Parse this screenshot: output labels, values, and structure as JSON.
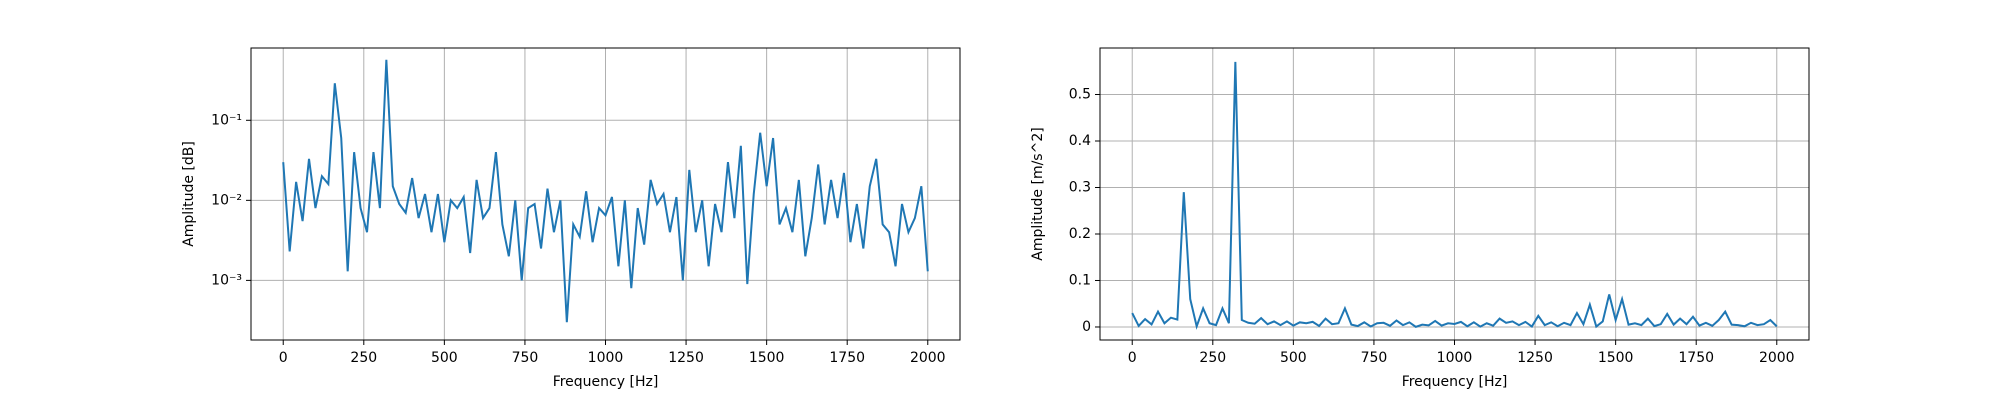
{
  "chart_data": [
    {
      "type": "line",
      "x_label": "Frequency [Hz]",
      "y_label": "Amplitude [dB]",
      "log_y": true,
      "grid": true,
      "color": "#1f77b4",
      "x": [
        0,
        20,
        40,
        60,
        80,
        100,
        120,
        140,
        160,
        180,
        200,
        220,
        240,
        260,
        280,
        300,
        320,
        340,
        360,
        380,
        400,
        420,
        440,
        460,
        480,
        500,
        520,
        540,
        560,
        580,
        600,
        620,
        640,
        660,
        680,
        700,
        720,
        740,
        760,
        780,
        800,
        820,
        840,
        860,
        880,
        900,
        920,
        940,
        960,
        980,
        1000,
        1020,
        1040,
        1060,
        1080,
        1100,
        1120,
        1140,
        1160,
        1180,
        1200,
        1220,
        1240,
        1260,
        1280,
        1300,
        1320,
        1340,
        1360,
        1380,
        1400,
        1420,
        1440,
        1460,
        1480,
        1500,
        1520,
        1540,
        1560,
        1580,
        1600,
        1620,
        1640,
        1660,
        1680,
        1700,
        1720,
        1740,
        1760,
        1780,
        1800,
        1820,
        1840,
        1860,
        1880,
        1900,
        1920,
        1940,
        1960,
        1980,
        2000
      ],
      "values": [
        0.03,
        0.0023,
        0.017,
        0.0055,
        0.033,
        0.008,
        0.02,
        0.016,
        0.29,
        0.06,
        0.0013,
        0.04,
        0.008,
        0.004,
        0.04,
        0.008,
        0.57,
        0.015,
        0.009,
        0.007,
        0.019,
        0.006,
        0.012,
        0.004,
        0.012,
        0.003,
        0.01,
        0.008,
        0.011,
        0.0022,
        0.018,
        0.006,
        0.008,
        0.04,
        0.005,
        0.002,
        0.01,
        0.001,
        0.008,
        0.009,
        0.0025,
        0.014,
        0.004,
        0.01,
        0.0003,
        0.005,
        0.0035,
        0.013,
        0.003,
        0.008,
        0.0065,
        0.011,
        0.0015,
        0.01,
        0.0008,
        0.008,
        0.0028,
        0.018,
        0.009,
        0.012,
        0.004,
        0.011,
        0.001,
        0.024,
        0.004,
        0.01,
        0.0015,
        0.009,
        0.004,
        0.03,
        0.006,
        0.048,
        0.0009,
        0.012,
        0.07,
        0.015,
        0.06,
        0.005,
        0.008,
        0.004,
        0.018,
        0.002,
        0.006,
        0.028,
        0.005,
        0.018,
        0.006,
        0.022,
        0.003,
        0.009,
        0.0025,
        0.015,
        0.033,
        0.005,
        0.004,
        0.0015,
        0.009,
        0.004,
        0.006,
        0.015,
        0.0013
      ],
      "xlim": [
        -100,
        2100
      ],
      "xticks": [
        0,
        250,
        500,
        750,
        1000,
        1250,
        1500,
        1750,
        2000
      ],
      "ylim": [
        0.00018,
        0.8
      ],
      "yticks": [
        {
          "value": 0.001,
          "label": "10⁻³"
        },
        {
          "value": 0.01,
          "label": "10⁻²"
        },
        {
          "value": 0.1,
          "label": "10⁻¹"
        }
      ]
    },
    {
      "type": "line",
      "x_label": "Frequency [Hz]",
      "y_label": "Amplitude [m/s^2]",
      "log_y": false,
      "grid": true,
      "color": "#1f77b4",
      "x": [
        0,
        20,
        40,
        60,
        80,
        100,
        120,
        140,
        160,
        180,
        200,
        220,
        240,
        260,
        280,
        300,
        320,
        340,
        360,
        380,
        400,
        420,
        440,
        460,
        480,
        500,
        520,
        540,
        560,
        580,
        600,
        620,
        640,
        660,
        680,
        700,
        720,
        740,
        760,
        780,
        800,
        820,
        840,
        860,
        880,
        900,
        920,
        940,
        960,
        980,
        1000,
        1020,
        1040,
        1060,
        1080,
        1100,
        1120,
        1140,
        1160,
        1180,
        1200,
        1220,
        1240,
        1260,
        1280,
        1300,
        1320,
        1340,
        1360,
        1380,
        1400,
        1420,
        1440,
        1460,
        1480,
        1500,
        1520,
        1540,
        1560,
        1580,
        1600,
        1620,
        1640,
        1660,
        1680,
        1700,
        1720,
        1740,
        1760,
        1780,
        1800,
        1820,
        1840,
        1860,
        1880,
        1900,
        1920,
        1940,
        1960,
        1980,
        2000
      ],
      "values": [
        0.03,
        0.0023,
        0.017,
        0.0055,
        0.033,
        0.008,
        0.02,
        0.016,
        0.29,
        0.06,
        0.0013,
        0.04,
        0.008,
        0.004,
        0.04,
        0.008,
        0.57,
        0.015,
        0.009,
        0.007,
        0.019,
        0.006,
        0.012,
        0.004,
        0.012,
        0.003,
        0.01,
        0.008,
        0.011,
        0.0022,
        0.018,
        0.006,
        0.008,
        0.04,
        0.005,
        0.002,
        0.01,
        0.001,
        0.008,
        0.009,
        0.0025,
        0.014,
        0.004,
        0.01,
        0.0003,
        0.005,
        0.0035,
        0.013,
        0.003,
        0.008,
        0.0065,
        0.011,
        0.0015,
        0.01,
        0.0008,
        0.008,
        0.0028,
        0.018,
        0.009,
        0.012,
        0.004,
        0.011,
        0.001,
        0.024,
        0.004,
        0.01,
        0.0015,
        0.009,
        0.004,
        0.03,
        0.006,
        0.048,
        0.0009,
        0.012,
        0.07,
        0.015,
        0.06,
        0.005,
        0.008,
        0.004,
        0.018,
        0.002,
        0.006,
        0.028,
        0.005,
        0.018,
        0.006,
        0.022,
        0.003,
        0.009,
        0.0025,
        0.015,
        0.033,
        0.005,
        0.004,
        0.0015,
        0.009,
        0.004,
        0.006,
        0.015,
        0.0013
      ],
      "xlim": [
        -100,
        2100
      ],
      "xticks": [
        0,
        250,
        500,
        750,
        1000,
        1250,
        1500,
        1750,
        2000
      ],
      "ylim": [
        -0.028,
        0.6
      ],
      "yticks": [
        0,
        0.1,
        0.2,
        0.3,
        0.4,
        0.5
      ]
    }
  ]
}
